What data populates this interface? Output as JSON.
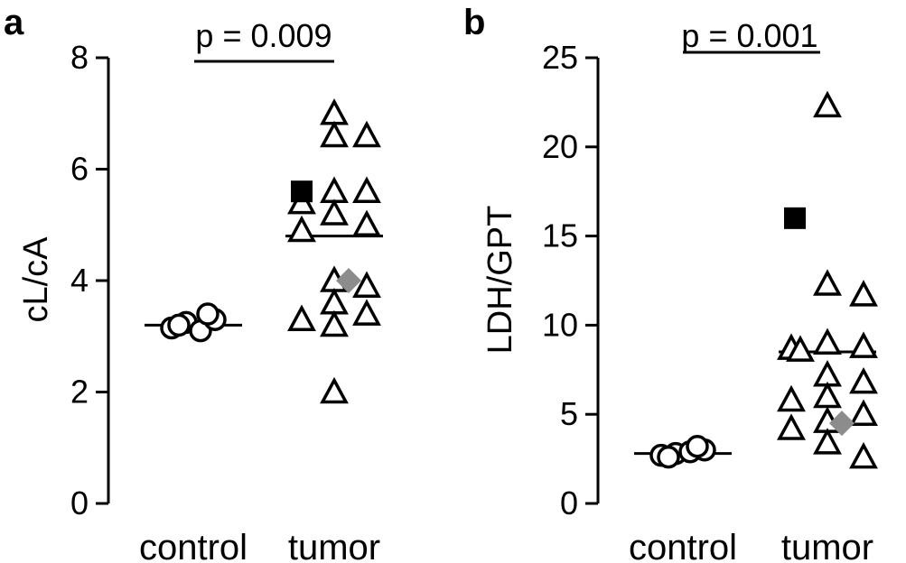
{
  "chart_data": [
    {
      "type": "scatter",
      "panel_label": "a",
      "ylabel": "cL/cA",
      "ylim": [
        0,
        8
      ],
      "yticks": [
        "0",
        "2",
        "4",
        "6",
        "8"
      ],
      "categories": [
        "control",
        "tumor"
      ],
      "p_value": "p = 0.009",
      "groups": [
        {
          "name": "control",
          "marker": "circle",
          "mean": 3.2,
          "points": [
            3.15,
            3.25,
            3.1,
            3.3,
            3.2,
            3.4
          ]
        },
        {
          "name": "tumor",
          "marker": "triangle",
          "mean": 4.8,
          "points": [
            7.0,
            6.6,
            6.6,
            5.6,
            5.6,
            5.4,
            5.2,
            5.0,
            4.9,
            4.0,
            3.9,
            3.6,
            3.4,
            3.3,
            3.2,
            2.0
          ]
        }
      ],
      "highlights": [
        {
          "marker": "square",
          "color": "#000000",
          "group": "tumor",
          "value": 5.6
        },
        {
          "marker": "diamond",
          "color": "#8c8c8c",
          "group": "tumor",
          "value": 4.0
        }
      ]
    },
    {
      "type": "scatter",
      "panel_label": "b",
      "ylabel": "LDH/GPT",
      "ylim": [
        0,
        25
      ],
      "yticks": [
        "0",
        "5",
        "10",
        "15",
        "20",
        "25"
      ],
      "categories": [
        "control",
        "tumor"
      ],
      "p_value": "p = 0.001",
      "groups": [
        {
          "name": "control",
          "marker": "circle",
          "mean": 2.8,
          "points": [
            2.7,
            2.8,
            2.9,
            3.0,
            2.6,
            3.2
          ]
        },
        {
          "name": "tumor",
          "marker": "triangle",
          "mean": 8.5,
          "points": [
            22.3,
            12.3,
            11.7,
            9.0,
            8.8,
            8.7,
            8.6,
            7.2,
            6.8,
            6.0,
            5.8,
            5.0,
            4.6,
            4.2,
            3.4,
            2.6
          ]
        }
      ],
      "highlights": [
        {
          "marker": "square",
          "color": "#000000",
          "group": "tumor",
          "value": 16.0
        },
        {
          "marker": "diamond",
          "color": "#8c8c8c",
          "group": "tumor",
          "value": 4.5
        }
      ]
    }
  ]
}
